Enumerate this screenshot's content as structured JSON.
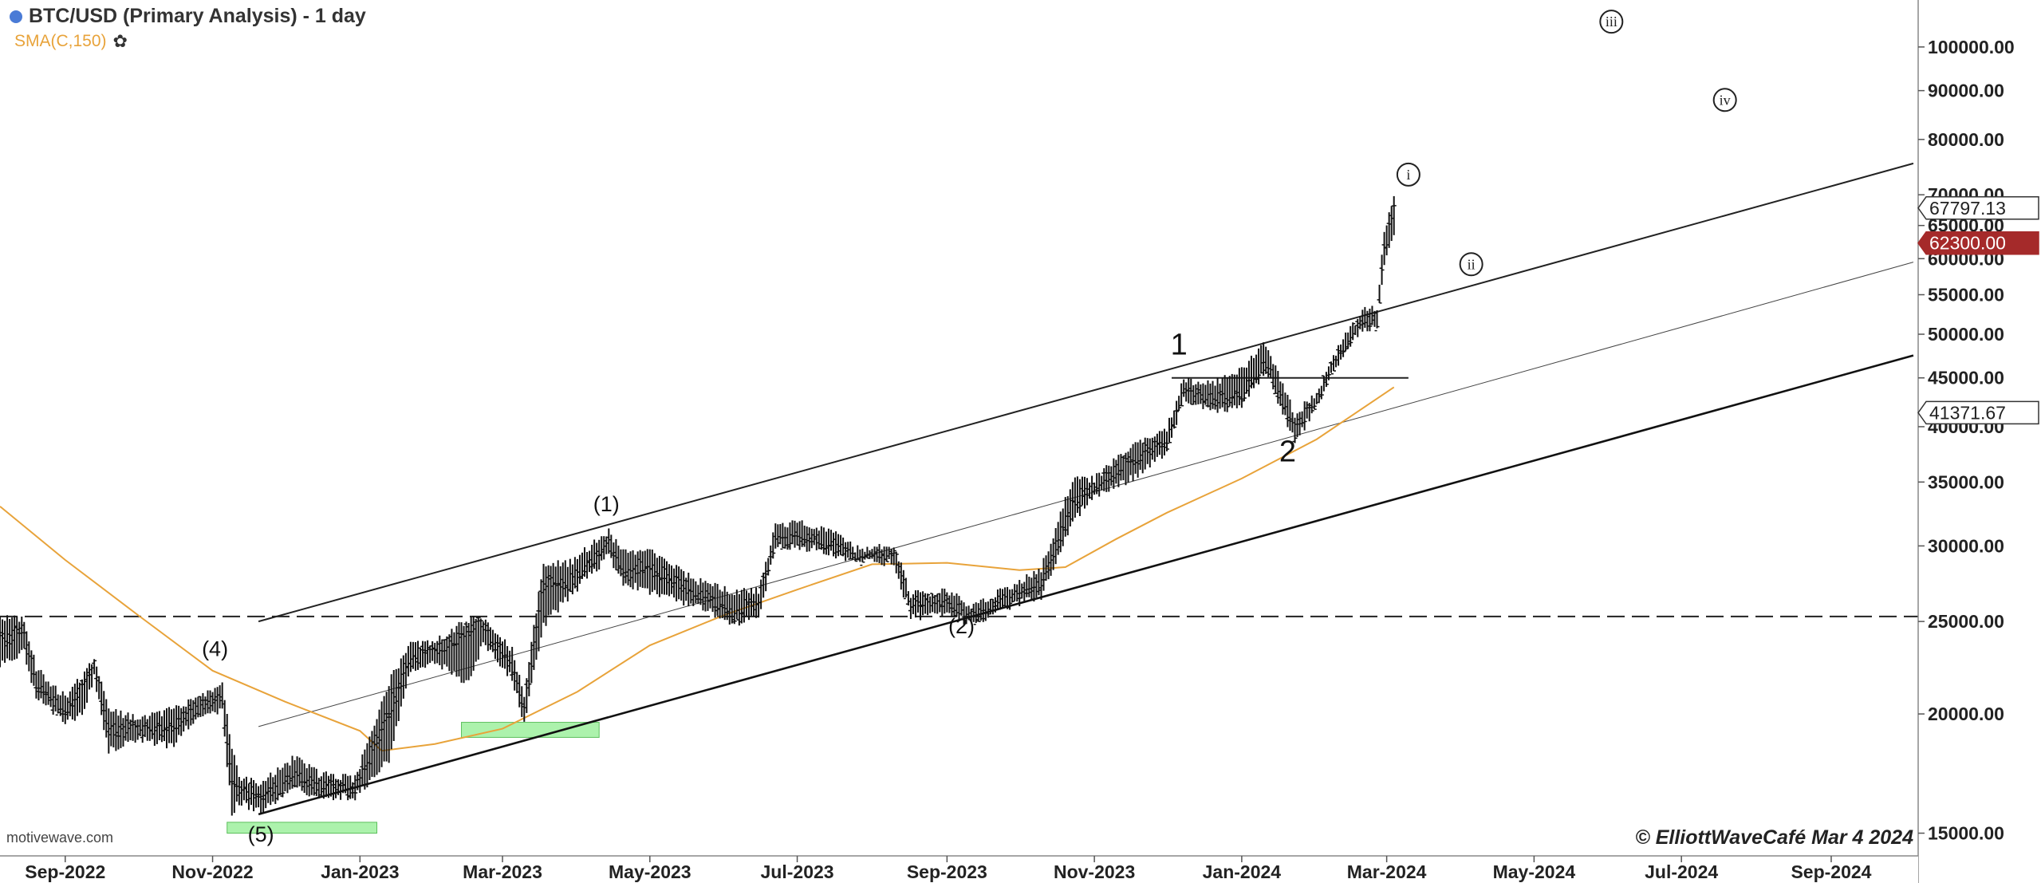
{
  "header": {
    "title": "BTC/USD (Primary Analysis) - 1 day",
    "indicator": "SMA(C,150)",
    "indicator_color": "#e8a33a",
    "dot_color": "#4a7bd6",
    "settings_icon": "gear-icon"
  },
  "footer": {
    "watermark": "motivewave.com",
    "copyright": "© ElliottWaveCafé Mar 4 2024"
  },
  "chart_data": {
    "type": "line",
    "title": "BTC/USD (Primary Analysis) - 1 day",
    "xlabel": "",
    "ylabel": "",
    "y_scale": "log",
    "xlim": [
      "2022-08-05",
      "2024-10-07"
    ],
    "ylim": [
      14200,
      112000
    ],
    "grid": false,
    "x_ticks": [
      {
        "date": "2022-09-01",
        "label": "Sep-2022"
      },
      {
        "date": "2022-11-01",
        "label": "Nov-2022"
      },
      {
        "date": "2023-01-01",
        "label": "Jan-2023"
      },
      {
        "date": "2023-03-01",
        "label": "Mar-2023"
      },
      {
        "date": "2023-05-01",
        "label": "May-2023"
      },
      {
        "date": "2023-07-01",
        "label": "Jul-2023"
      },
      {
        "date": "2023-09-01",
        "label": "Sep-2023"
      },
      {
        "date": "2023-11-01",
        "label": "Nov-2023"
      },
      {
        "date": "2024-01-01",
        "label": "Jan-2024"
      },
      {
        "date": "2024-03-01",
        "label": "Mar-2024"
      },
      {
        "date": "2024-05-01",
        "label": "May-2024"
      },
      {
        "date": "2024-07-01",
        "label": "Jul-2024"
      },
      {
        "date": "2024-09-01",
        "label": "Sep-2024"
      }
    ],
    "y_ticks": [
      {
        "value": 15000,
        "label": "15000.00"
      },
      {
        "value": 20000,
        "label": "20000.00"
      },
      {
        "value": 25000,
        "label": "25000.00"
      },
      {
        "value": 30000,
        "label": "30000.00"
      },
      {
        "value": 35000,
        "label": "35000.00"
      },
      {
        "value": 40000,
        "label": "40000.00"
      },
      {
        "value": 45000,
        "label": "45000.00"
      },
      {
        "value": 50000,
        "label": "50000.00"
      },
      {
        "value": 55000,
        "label": "55000.00"
      },
      {
        "value": 60000,
        "label": "60000.00"
      },
      {
        "value": 65000,
        "label": "65000.00"
      },
      {
        "value": 70000,
        "label": "70000.00"
      },
      {
        "value": 80000,
        "label": "80000.00"
      },
      {
        "value": 90000,
        "label": "90000.00"
      },
      {
        "value": 100000,
        "label": "100000.00"
      }
    ],
    "price_markers": [
      {
        "value": 67797.13,
        "label": "67797.13",
        "style": "outline",
        "color": "#333333"
      },
      {
        "value": 62300,
        "label": "62300.00",
        "style": "filled",
        "color": "#a52a2a"
      },
      {
        "value": 41371.67,
        "label": "41371.67",
        "style": "outline",
        "color": "#333333"
      }
    ],
    "series": [
      {
        "name": "BTC/USD",
        "style": "ohlc-bars",
        "color": "#111111",
        "x": [
          "2022-08-05",
          "2022-08-15",
          "2022-08-20",
          "2022-09-01",
          "2022-09-08",
          "2022-09-13",
          "2022-09-19",
          "2022-10-01",
          "2022-10-15",
          "2022-10-25",
          "2022-11-05",
          "2022-11-09",
          "2022-11-12",
          "2022-11-21",
          "2022-12-05",
          "2022-12-15",
          "2022-12-30",
          "2023-01-13",
          "2023-01-22",
          "2023-02-01",
          "2023-02-15",
          "2023-02-21",
          "2023-03-05",
          "2023-03-10",
          "2023-03-18",
          "2023-03-28",
          "2023-04-14",
          "2023-04-20",
          "2023-05-01",
          "2023-05-20",
          "2023-06-05",
          "2023-06-15",
          "2023-06-22",
          "2023-07-01",
          "2023-07-13",
          "2023-07-25",
          "2023-08-10",
          "2023-08-17",
          "2023-09-01",
          "2023-09-11",
          "2023-09-25",
          "2023-10-10",
          "2023-10-23",
          "2023-11-01",
          "2023-11-15",
          "2023-12-01",
          "2023-12-08",
          "2023-12-20",
          "2024-01-01",
          "2024-01-11",
          "2024-01-23",
          "2024-02-01",
          "2024-02-10",
          "2024-02-20",
          "2024-02-26",
          "2024-02-29",
          "2024-03-04"
        ],
        "y": [
          24000,
          24500,
          21500,
          20000,
          21500,
          22500,
          19200,
          19300,
          19200,
          20300,
          20800,
          17000,
          16800,
          16300,
          17100,
          16800,
          16600,
          20000,
          22800,
          23200,
          24600,
          24700,
          22300,
          20200,
          27500,
          27000,
          30300,
          28200,
          28500,
          26800,
          25200,
          26300,
          30200,
          30600,
          30200,
          29300,
          29400,
          26100,
          26400,
          25200,
          26200,
          27400,
          33000,
          34600,
          37000,
          38500,
          43500,
          42500,
          43000,
          46500,
          39600,
          42800,
          47700,
          51800,
          51800,
          61000,
          67797.13
        ],
        "low": [
          22600,
          23200,
          20800,
          19600,
          20000,
          21800,
          18300,
          18900,
          18500,
          19800,
          20100,
          15700,
          16200,
          15800,
          16800,
          16300,
          16400,
          17900,
          22300,
          22700,
          21500,
          23800,
          21800,
          19600,
          24800,
          26500,
          29300,
          27400,
          26900,
          26000,
          24900,
          25300,
          29800,
          30000,
          29600,
          29000,
          28800,
          25300,
          25400,
          24900,
          25800,
          26600,
          31900,
          33900,
          35100,
          37600,
          42800,
          41500,
          42200,
          45800,
          38600,
          41900,
          46800,
          50600,
          50900,
          59500,
          64100
        ],
        "high": [
          25300,
          25200,
          22300,
          20800,
          21900,
          22800,
          20200,
          19800,
          20200,
          20800,
          21500,
          18500,
          17100,
          16900,
          18000,
          17300,
          17100,
          21600,
          23600,
          23800,
          25100,
          25200,
          23300,
          21000,
          28800,
          28700,
          31000,
          29600,
          29700,
          27600,
          26800,
          26900,
          31400,
          31800,
          31300,
          29800,
          30000,
          26700,
          26900,
          25900,
          27000,
          28400,
          35100,
          35300,
          37800,
          39900,
          44700,
          44400,
          45900,
          48900,
          41100,
          43500,
          48400,
          52900,
          53100,
          64000,
          69200
        ]
      },
      {
        "name": "SMA(C,150)",
        "style": "line",
        "color": "#e8a33a",
        "x": [
          "2022-08-05",
          "2022-09-01",
          "2022-10-01",
          "2022-11-01",
          "2022-12-01",
          "2023-01-01",
          "2023-01-10",
          "2023-02-01",
          "2023-03-01",
          "2023-04-01",
          "2023-05-01",
          "2023-06-01",
          "2023-07-01",
          "2023-08-01",
          "2023-09-01",
          "2023-10-01",
          "2023-10-20",
          "2023-11-10",
          "2023-12-01",
          "2024-01-01",
          "2024-02-01",
          "2024-03-04"
        ],
        "y": [
          33000,
          29000,
          25400,
          22200,
          20600,
          19200,
          18300,
          18600,
          19300,
          21100,
          23600,
          25400,
          27000,
          28700,
          28800,
          28300,
          28500,
          30500,
          32500,
          35300,
          38800,
          44000
        ]
      }
    ],
    "overlays": {
      "horizontal_lines": [
        {
          "value": 25300,
          "x0": "2022-08-05",
          "x1": "2024-10-07",
          "style": "dashed",
          "color": "#222222"
        },
        {
          "value": 45000,
          "x0": "2023-12-03",
          "x1": "2024-03-10",
          "style": "solid",
          "color": "#222222"
        }
      ],
      "trend_lines": [
        {
          "x0": "2022-11-20",
          "y0": 25000,
          "x1": "2024-10-05",
          "y1": 75500,
          "width": "medium",
          "color": "#222222"
        },
        {
          "x0": "2022-11-20",
          "y0": 19400,
          "x1": "2024-10-05",
          "y1": 59500,
          "width": "thin",
          "color": "#444444"
        },
        {
          "x0": "2022-11-20",
          "y0": 15700,
          "x1": "2024-10-05",
          "y1": 47500,
          "width": "thick",
          "color": "#111111"
        }
      ],
      "highlight_boxes": [
        {
          "x0": "2022-11-07",
          "x1": "2023-01-08",
          "y0": 15000,
          "y1": 15400,
          "color": "#90ee90"
        },
        {
          "x0": "2023-02-12",
          "x1": "2023-04-10",
          "y0": 18900,
          "y1": 19600,
          "color": "#90ee90"
        }
      ]
    },
    "annotations": [
      {
        "text": "(4)",
        "x": "2022-11-02",
        "y": 23000,
        "size": "medium"
      },
      {
        "text": "(5)",
        "x": "2022-11-21",
        "y": 14700,
        "size": "medium"
      },
      {
        "text": "(1)",
        "x": "2023-04-13",
        "y": 32600,
        "size": "medium"
      },
      {
        "text": "(2)",
        "x": "2023-09-07",
        "y": 24300,
        "size": "medium"
      },
      {
        "text": "1",
        "x": "2023-12-06",
        "y": 47600,
        "size": "large"
      },
      {
        "text": "2",
        "x": "2024-01-20",
        "y": 36800,
        "size": "large"
      },
      {
        "text": "i",
        "x": "2024-03-10",
        "y": 73500,
        "size": "circled"
      },
      {
        "text": "ii",
        "x": "2024-04-05",
        "y": 59200,
        "size": "circled"
      },
      {
        "text": "iii",
        "x": "2024-06-02",
        "y": 106300,
        "size": "circled"
      },
      {
        "text": "iv",
        "x": "2024-07-19",
        "y": 88000,
        "size": "circled"
      }
    ]
  }
}
